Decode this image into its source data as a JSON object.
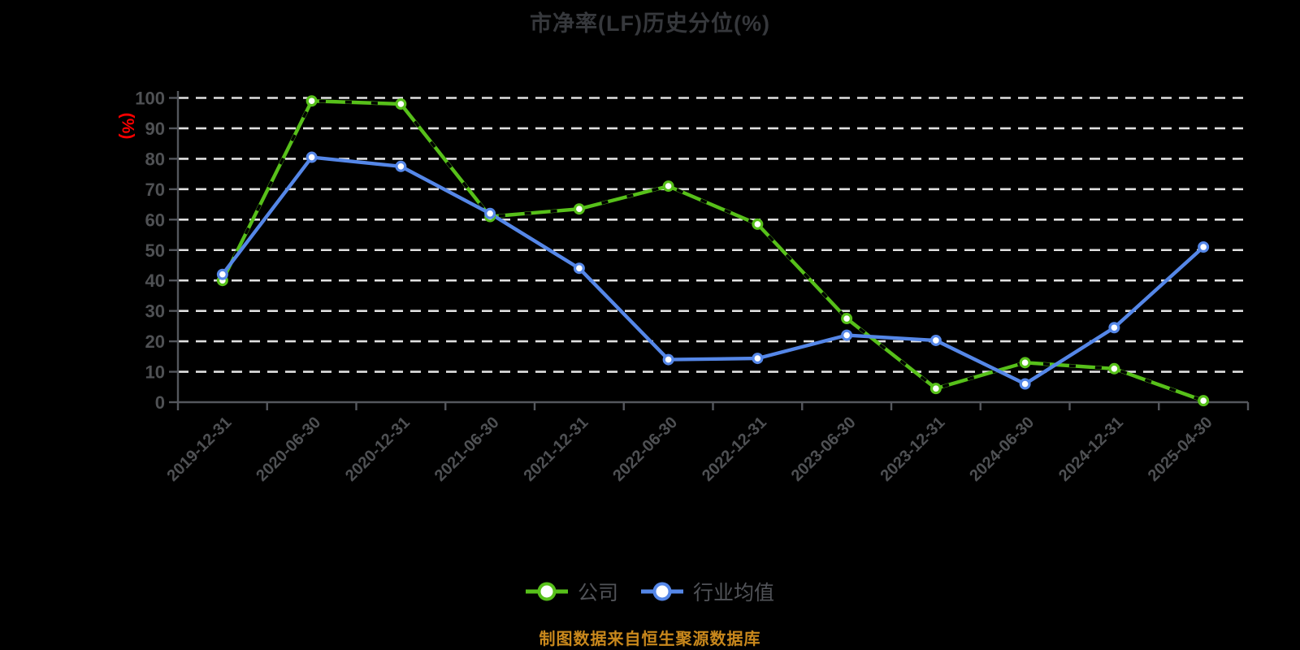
{
  "header": {
    "title": "市净率(LF)历史分位(%)"
  },
  "footer": {
    "text": "制图数据来自恒生聚源数据库",
    "color": "#c9881c"
  },
  "legend": {
    "position": "bottom",
    "items": [
      {
        "label": "公司",
        "color": "#57c01a"
      },
      {
        "label": "行业均值",
        "color": "#5587e8"
      }
    ]
  },
  "colors": {
    "background": "#000000",
    "grid": "#e0e0e0",
    "axis": "#54575d",
    "tick_label": "#4f5154",
    "title": "#36383c",
    "ylabel": "#fe0000",
    "marker_fill": "#ffffff"
  },
  "chart_data": {
    "type": "line",
    "title": "市净率(LF)历史分位(%)",
    "xlabel": "",
    "ylabel": "(%)",
    "ylim": [
      0,
      100
    ],
    "y_ticks": [
      0,
      10,
      20,
      30,
      40,
      50,
      60,
      70,
      80,
      90,
      100
    ],
    "grid": "horizontal-dashed",
    "x_tick_rotation": 45,
    "legend_position": "bottom",
    "categories": [
      "2019-12-31",
      "2020-06-30",
      "2020-12-31",
      "2021-06-30",
      "2021-12-31",
      "2022-06-30",
      "2022-12-31",
      "2023-06-30",
      "2023-12-31",
      "2024-06-30",
      "2024-12-31",
      "2025-04-30"
    ],
    "series": [
      {
        "name": "公司",
        "color": "#57c01a",
        "marker": "white-filled-circle",
        "line_decoration": "black-dash-overlay",
        "values": [
          40,
          99,
          98,
          61,
          63.5,
          71,
          58.5,
          27.5,
          4.5,
          13,
          11,
          0.5
        ]
      },
      {
        "name": "行业均值",
        "color": "#5587e8",
        "marker": "white-filled-circle",
        "line_decoration": "none",
        "values": [
          42,
          80.5,
          77.5,
          62,
          44,
          14,
          14.4,
          22,
          20.3,
          6,
          24.5,
          51
        ]
      }
    ]
  }
}
